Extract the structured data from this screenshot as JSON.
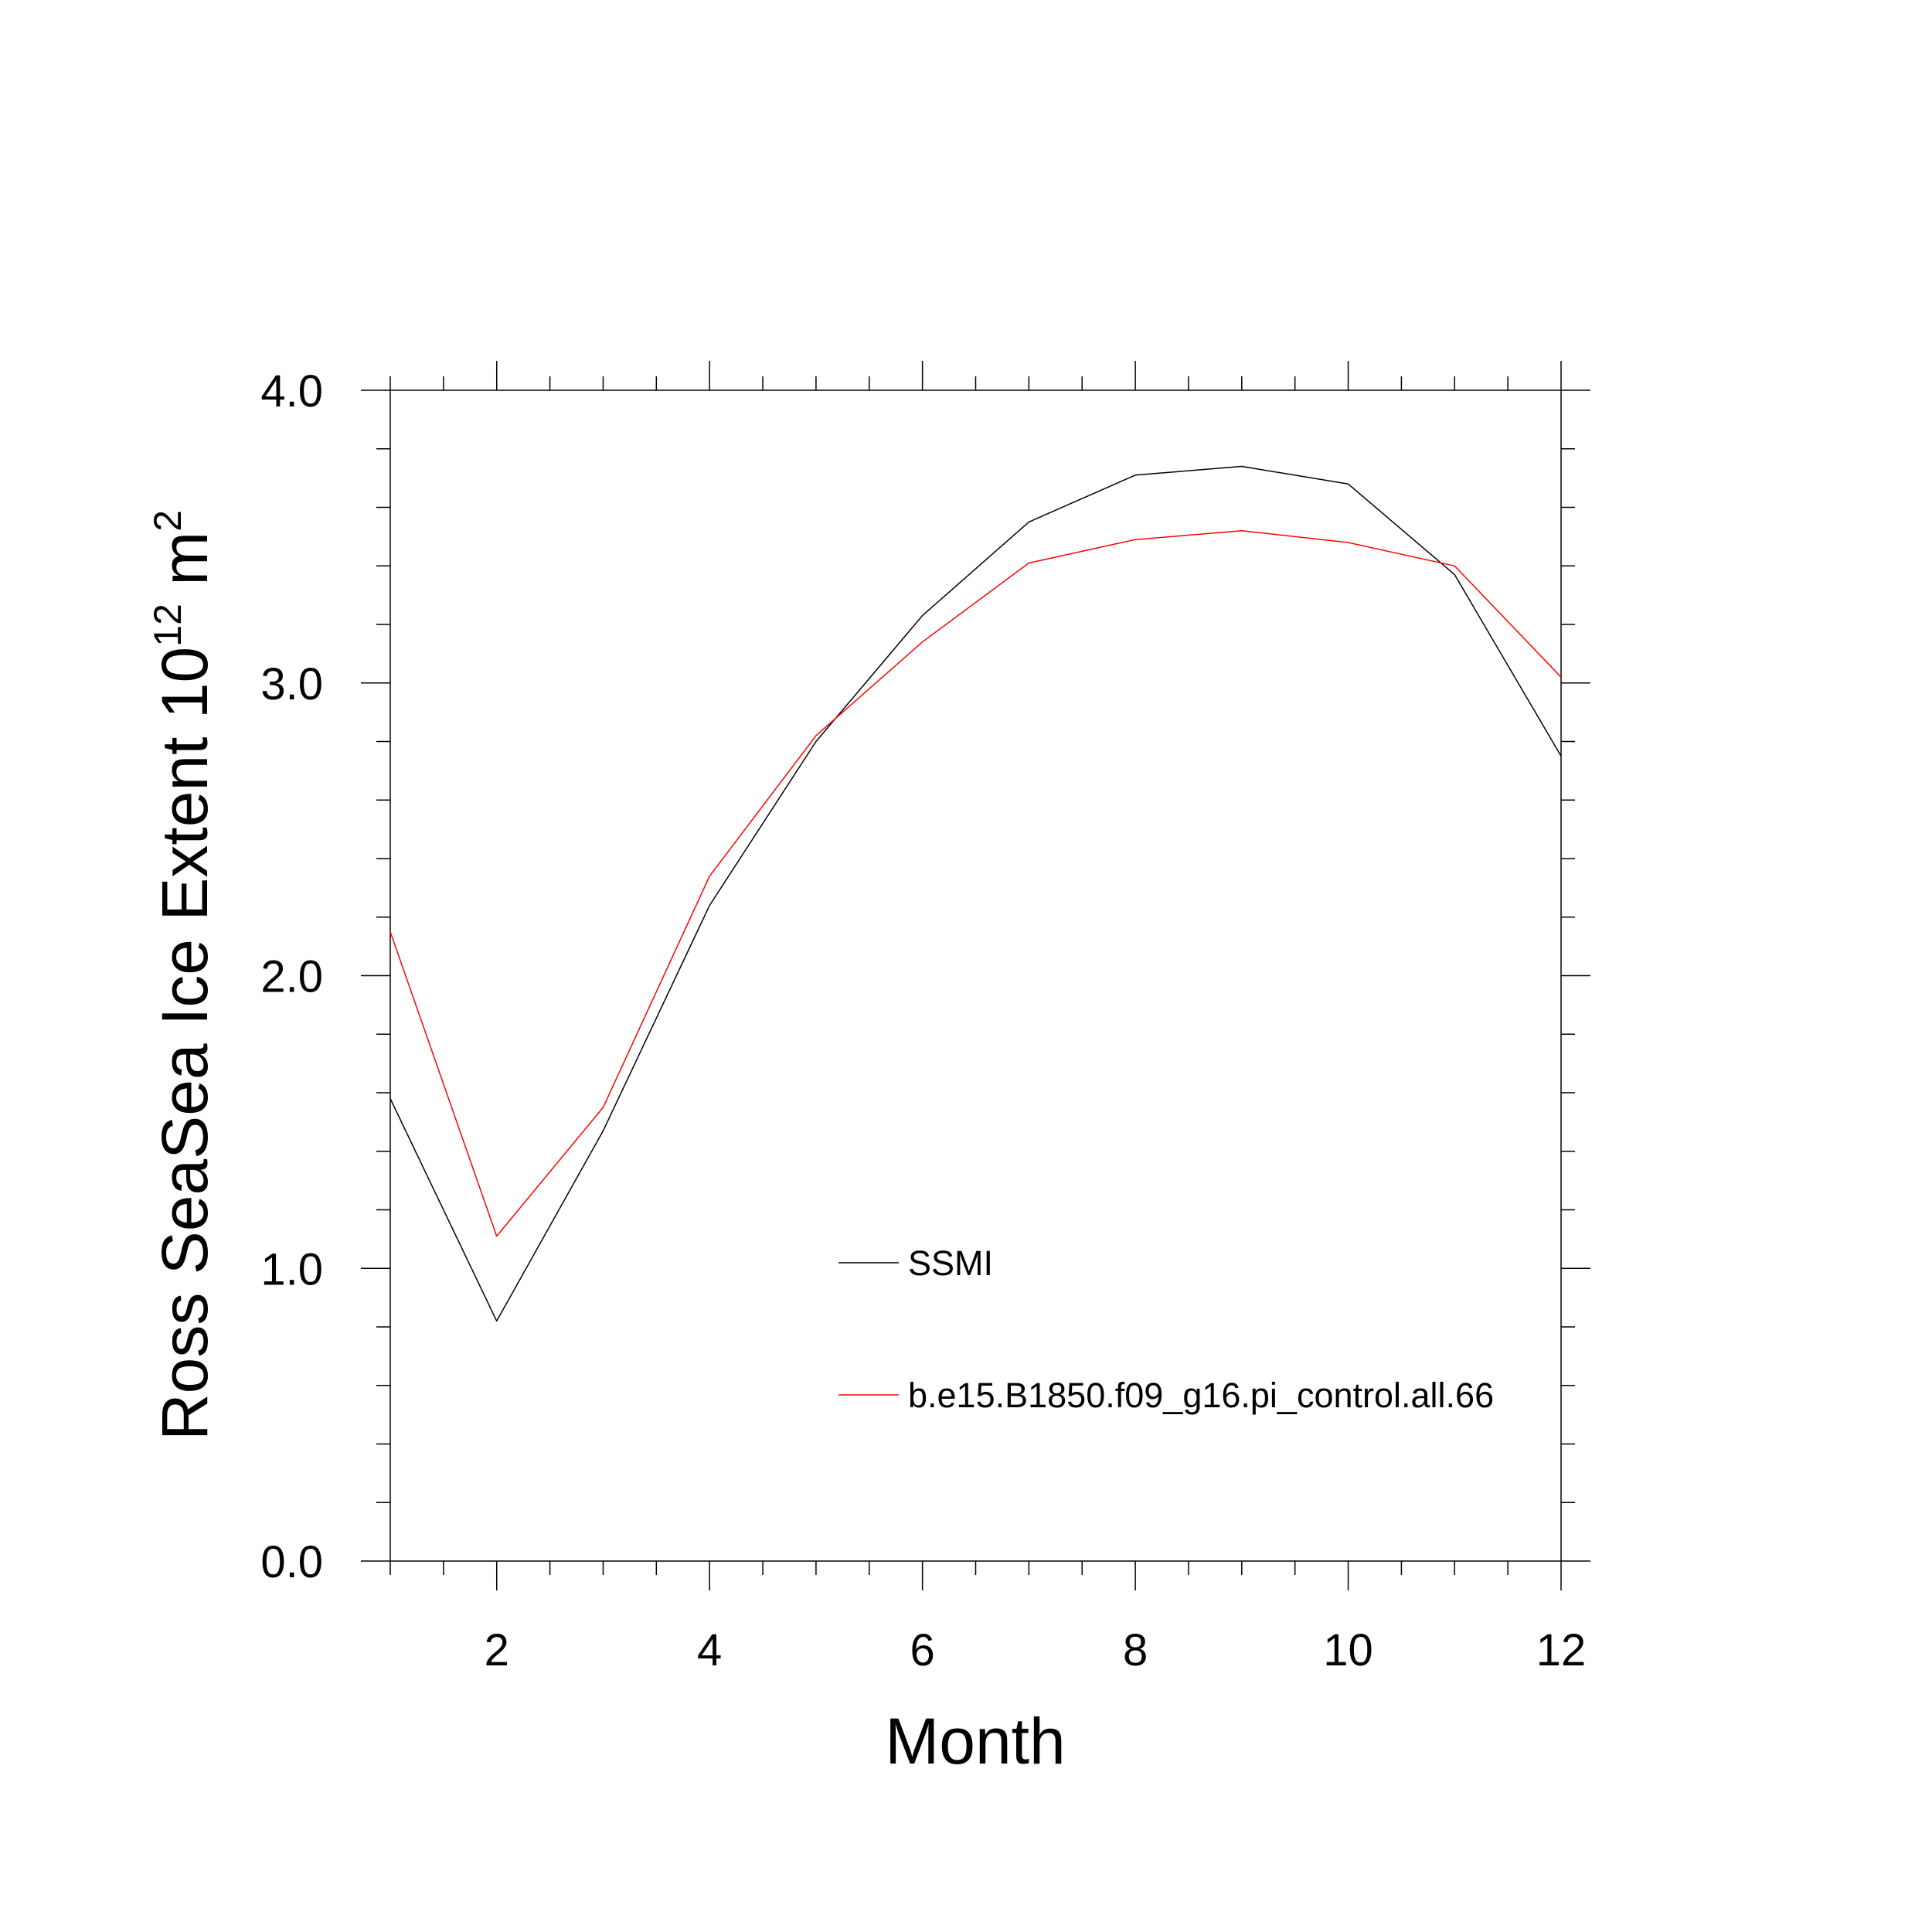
{
  "chart_data": {
    "type": "line",
    "xlabel": "Month",
    "ylabel": "Ross SeaSea Ice Extent 10",
    "ylabel_exponent": "12",
    "ylabel_unit": " m",
    "ylabel_unit_exponent": "2",
    "xlim": [
      1,
      12
    ],
    "ylim": [
      0,
      4
    ],
    "x_ticks": [
      2,
      4,
      6,
      8,
      10,
      12
    ],
    "x_tick_labels": [
      "2",
      "4",
      "6",
      "8",
      "10",
      "12"
    ],
    "y_ticks": [
      0,
      1,
      2,
      3,
      4
    ],
    "y_tick_labels": [
      "0.0",
      "1.0",
      "2.0",
      "3.0",
      "4.0"
    ],
    "x": [
      1,
      2,
      3,
      4,
      5,
      6,
      7,
      8,
      9,
      10,
      11,
      12
    ],
    "series": [
      {
        "name": "SSMI",
        "color": "#000000",
        "values": [
          1.58,
          0.82,
          1.47,
          2.24,
          2.8,
          3.23,
          3.55,
          3.71,
          3.74,
          3.68,
          3.37,
          2.75
        ]
      },
      {
        "name": "b.e15.B1850.f09_g16.pi_control.all.66",
        "color": "#ff0000",
        "values": [
          2.15,
          1.11,
          1.55,
          2.34,
          2.82,
          3.14,
          3.41,
          3.49,
          3.52,
          3.48,
          3.4,
          3.02
        ]
      }
    ],
    "grid": false,
    "legend_position": "lower-right"
  }
}
